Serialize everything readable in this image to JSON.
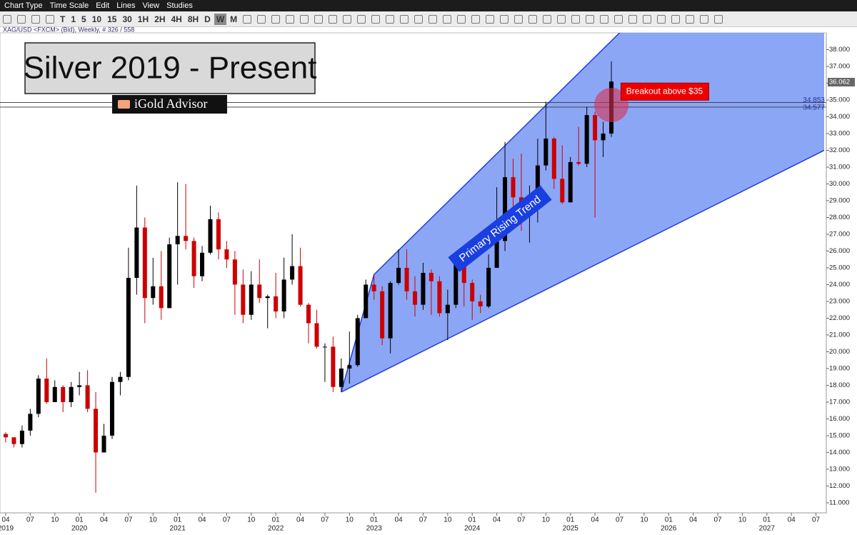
{
  "toolbar": {
    "menu": [
      "Chart Type",
      "Time Scale",
      "Edit",
      "Lines",
      "View",
      "Studies"
    ],
    "timeframes": [
      "T",
      "1",
      "5",
      "10",
      "15",
      "30",
      "1H",
      "2H",
      "4H",
      "8H",
      "D",
      "W",
      "M"
    ],
    "active": "W"
  },
  "chart_data": {
    "type": "candlestick",
    "header": "XAG/USD <FXCM> (Bid), Weekly, # 326 / 558",
    "title": "Silver 2019 - Present",
    "brand": "iGold Advisor",
    "up_color": "#000000",
    "down_color": "#cc0000",
    "x": [
      "2019-04",
      "2019-05",
      "2019-06",
      "2019-07",
      "2019-08",
      "2019-09",
      "2019-10",
      "2019-11",
      "2019-12",
      "2020-01",
      "2020-02",
      "2020-03",
      "2020-04",
      "2020-05",
      "2020-06",
      "2020-07",
      "2020-08",
      "2020-09",
      "2020-10",
      "2020-11",
      "2020-12",
      "2021-01",
      "2021-02",
      "2021-03",
      "2021-04",
      "2021-05",
      "2021-06",
      "2021-07",
      "2021-08",
      "2021-09",
      "2021-10",
      "2021-11",
      "2021-12",
      "2022-01",
      "2022-02",
      "2022-03",
      "2022-04",
      "2022-05",
      "2022-06",
      "2022-07",
      "2022-08",
      "2022-09",
      "2022-10",
      "2022-11",
      "2022-12",
      "2023-01",
      "2023-02",
      "2023-03",
      "2023-04",
      "2023-05",
      "2023-06",
      "2023-07",
      "2023-08",
      "2023-09",
      "2023-10",
      "2023-11",
      "2023-12",
      "2024-01",
      "2024-02",
      "2024-03",
      "2024-04",
      "2024-05",
      "2024-06",
      "2024-07",
      "2024-08",
      "2024-09",
      "2024-10",
      "2024-11",
      "2024-12",
      "2025-01",
      "2025-02",
      "2025-03",
      "2025-04",
      "2025-05",
      "2025-06"
    ],
    "open": [
      15.1,
      14.9,
      14.5,
      15.3,
      16.3,
      18.4,
      17.0,
      17.9,
      17.0,
      17.9,
      18.0,
      16.6,
      14.0,
      15.0,
      18.2,
      18.5,
      24.4,
      27.4,
      23.2,
      23.9,
      22.6,
      26.4,
      26.9,
      26.6,
      24.5,
      25.9,
      27.9,
      26.1,
      25.5,
      24.0,
      22.2,
      24.0,
      23.2,
      23.3,
      22.4,
      24.3,
      25.1,
      22.8,
      21.7,
      20.3,
      20.3,
      17.9,
      19.0,
      19.2,
      22.0,
      24.0,
      23.6,
      20.8,
      24.1,
      25.0,
      23.6,
      22.8,
      24.7,
      24.2,
      22.3,
      22.8,
      25.2,
      24.1,
      23.0,
      22.7,
      25.0,
      26.6,
      30.4,
      29.2,
      28.6,
      28.9,
      31.1,
      32.7,
      30.3,
      28.9,
      31.3,
      31.2,
      34.1,
      32.6,
      33.0
    ],
    "high": [
      15.2,
      14.9,
      15.6,
      16.6,
      18.6,
      19.6,
      18.3,
      18.0,
      18.2,
      18.8,
      18.9,
      17.6,
      15.7,
      18.5,
      18.8,
      26.2,
      29.9,
      28.0,
      25.6,
      26.0,
      26.8,
      30.1,
      30.0,
      26.8,
      26.3,
      28.7,
      28.3,
      26.6,
      26.0,
      24.9,
      24.8,
      25.5,
      23.4,
      24.7,
      25.6,
      27.0,
      26.2,
      22.9,
      22.5,
      20.5,
      20.9,
      19.6,
      21.2,
      22.2,
      24.3,
      24.6,
      23.9,
      24.2,
      26.1,
      26.1,
      24.5,
      25.3,
      24.9,
      24.5,
      23.7,
      25.4,
      25.9,
      24.3,
      23.4,
      25.8,
      29.8,
      32.5,
      31.5,
      31.8,
      29.9,
      32.7,
      34.9,
      32.8,
      32.3,
      31.6,
      33.4,
      34.6,
      34.3,
      33.7,
      37.3
    ],
    "low": [
      14.6,
      14.3,
      14.3,
      15.0,
      16.1,
      16.9,
      17.0,
      16.4,
      16.7,
      17.4,
      16.4,
      11.6,
      14.0,
      14.8,
      17.4,
      18.3,
      23.4,
      21.7,
      22.8,
      21.9,
      22.6,
      24.0,
      26.1,
      23.8,
      24.2,
      25.8,
      25.5,
      25.0,
      22.2,
      21.7,
      21.9,
      22.9,
      21.4,
      22.0,
      22.0,
      24.0,
      22.7,
      20.5,
      20.2,
      18.2,
      17.6,
      17.6,
      18.1,
      19.1,
      22.0,
      23.1,
      20.4,
      19.9,
      24.0,
      23.1,
      22.1,
      22.5,
      22.2,
      22.1,
      20.7,
      22.6,
      22.7,
      21.9,
      22.3,
      22.6,
      25.0,
      26.0,
      28.6,
      27.2,
      26.5,
      27.7,
      30.8,
      29.7,
      28.8,
      28.9,
      31.1,
      31.0,
      28.0,
      31.6,
      32.8
    ],
    "close": [
      14.9,
      14.5,
      15.3,
      16.3,
      18.4,
      17.0,
      17.9,
      17.0,
      17.9,
      18.0,
      16.6,
      14.0,
      15.0,
      18.2,
      18.5,
      24.4,
      27.4,
      23.2,
      23.9,
      22.6,
      26.4,
      26.9,
      26.6,
      24.5,
      25.9,
      27.9,
      26.1,
      25.5,
      24.0,
      22.2,
      24.0,
      23.2,
      23.3,
      22.4,
      24.3,
      25.1,
      22.8,
      21.7,
      20.3,
      20.3,
      17.9,
      19.0,
      19.2,
      22.0,
      24.0,
      23.6,
      20.8,
      24.1,
      25.0,
      23.6,
      22.8,
      24.7,
      24.2,
      22.3,
      22.8,
      25.2,
      24.1,
      23.0,
      22.7,
      25.0,
      26.6,
      30.4,
      29.2,
      28.6,
      28.9,
      31.1,
      32.7,
      30.3,
      28.9,
      31.3,
      31.2,
      34.1,
      32.6,
      33.0,
      36.1
    ],
    "xlim": [
      "2019-04",
      "2027-08"
    ],
    "ylim": [
      10.4,
      39.0
    ],
    "yticks": [
      {
        "value": 11,
        "label": "11.000"
      },
      {
        "value": 12,
        "label": "12.000"
      },
      {
        "value": 13,
        "label": "13.000"
      },
      {
        "value": 14,
        "label": "14.000"
      },
      {
        "value": 15,
        "label": "15.000"
      },
      {
        "value": 16,
        "label": "16.000"
      },
      {
        "value": 17,
        "label": "17.000"
      },
      {
        "value": 18,
        "label": "18.000"
      },
      {
        "value": 19,
        "label": "19.000"
      },
      {
        "value": 20,
        "label": "20.000"
      },
      {
        "value": 21,
        "label": "21.000"
      },
      {
        "value": 22,
        "label": "22.000"
      },
      {
        "value": 23,
        "label": "23.000"
      },
      {
        "value": 24,
        "label": "24.000"
      },
      {
        "value": 25,
        "label": "25.000"
      },
      {
        "value": 26,
        "label": "26.000"
      },
      {
        "value": 27,
        "label": "27.000"
      },
      {
        "value": 28,
        "label": "28.000"
      },
      {
        "value": 29,
        "label": "29.000"
      },
      {
        "value": 30,
        "label": "30.000"
      },
      {
        "value": 31,
        "label": "31.000"
      },
      {
        "value": 32,
        "label": "32.000"
      },
      {
        "value": 33,
        "label": "33.000"
      },
      {
        "value": 34,
        "label": "34.000"
      },
      {
        "value": 35,
        "label": "35.000"
      },
      {
        "value": 36,
        "label": "36.000"
      },
      {
        "value": 37,
        "label": "37.000"
      },
      {
        "value": 38,
        "label": "38.000"
      }
    ],
    "xticks": [
      {
        "value": "2019-04",
        "label": "04"
      },
      {
        "value": "2019-07",
        "label": "07"
      },
      {
        "value": "2019-10",
        "label": "10"
      },
      {
        "value": "2020-01",
        "label": "01"
      },
      {
        "value": "2020-04",
        "label": "04"
      },
      {
        "value": "2020-07",
        "label": "07"
      },
      {
        "value": "2020-10",
        "label": "10"
      },
      {
        "value": "2021-01",
        "label": "01"
      },
      {
        "value": "2021-04",
        "label": "04"
      },
      {
        "value": "2021-07",
        "label": "07"
      },
      {
        "value": "2021-10",
        "label": "10"
      },
      {
        "value": "2022-01",
        "label": "01"
      },
      {
        "value": "2022-04",
        "label": "04"
      },
      {
        "value": "2022-07",
        "label": "07"
      },
      {
        "value": "2022-10",
        "label": "10"
      },
      {
        "value": "2023-01",
        "label": "01"
      },
      {
        "value": "2023-04",
        "label": "04"
      },
      {
        "value": "2023-07",
        "label": "07"
      },
      {
        "value": "2023-10",
        "label": "10"
      },
      {
        "value": "2024-01",
        "label": "01"
      },
      {
        "value": "2024-04",
        "label": "04"
      },
      {
        "value": "2024-07",
        "label": "07"
      },
      {
        "value": "2024-10",
        "label": "10"
      },
      {
        "value": "2025-01",
        "label": "01"
      },
      {
        "value": "2025-04",
        "label": "04"
      },
      {
        "value": "2025-07",
        "label": "07"
      },
      {
        "value": "2025-10",
        "label": "10"
      },
      {
        "value": "2026-01",
        "label": "01"
      },
      {
        "value": "2026-04",
        "label": "04"
      },
      {
        "value": "2026-07",
        "label": "07"
      },
      {
        "value": "2026-10",
        "label": "10"
      },
      {
        "value": "2027-01",
        "label": "01"
      },
      {
        "value": "2027-04",
        "label": "04"
      },
      {
        "value": "2027-07",
        "label": "07"
      }
    ],
    "year_labels": [
      {
        "value": "2019-04",
        "label": "2019"
      },
      {
        "value": "2020-01",
        "label": "2020"
      },
      {
        "value": "2021-01",
        "label": "2021"
      },
      {
        "value": "2022-01",
        "label": "2022"
      },
      {
        "value": "2023-01",
        "label": "2023"
      },
      {
        "value": "2024-01",
        "label": "2024"
      },
      {
        "value": "2025-01",
        "label": "2025"
      },
      {
        "value": "2026-01",
        "label": "2026"
      },
      {
        "value": "2027-01",
        "label": "2027"
      }
    ],
    "last_price": 36.062,
    "levels": [
      34.853,
      34.577
    ],
    "channel": {
      "color": "#7f9cf5",
      "edge_color": "#1f3fe0",
      "upper": [
        [
          "2022-09",
          17.6
        ],
        [
          "2023-01",
          24.6
        ],
        [
          "2027-08",
          51.0
        ]
      ],
      "lower": [
        [
          "2022-09",
          17.6
        ],
        [
          "2027-08",
          32.0
        ]
      ],
      "label": "Primary Rising Trend"
    },
    "highlight": {
      "x": "2025-06",
      "y": 34.7
    },
    "annotation": {
      "text": "Breakout above $35",
      "x": "2025-07",
      "y": 35.5
    }
  }
}
